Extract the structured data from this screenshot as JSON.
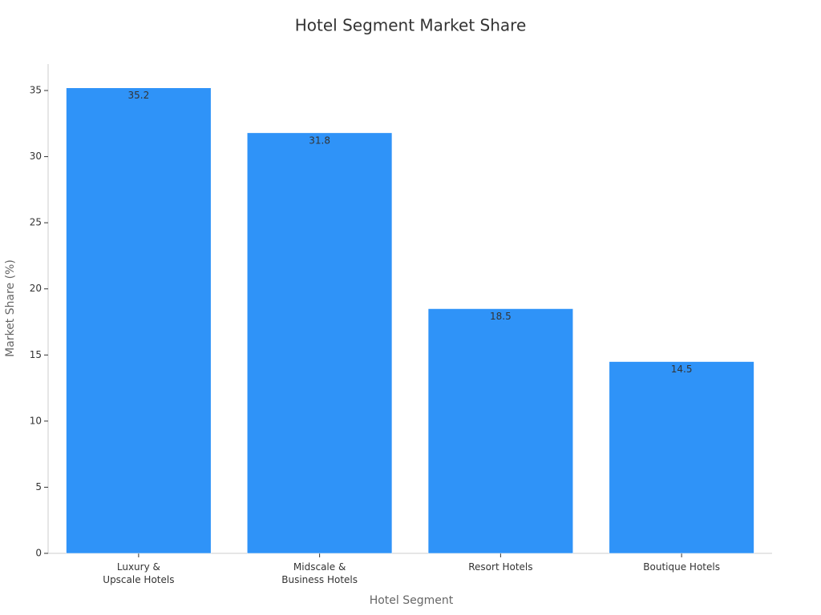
{
  "chart_data": {
    "type": "bar",
    "title": "Hotel Segment Market Share",
    "xlabel": "Hotel Segment",
    "ylabel": "Market Share (%)",
    "categories": [
      "Luxury &\nUpscale Hotels",
      "Midscale &\nBusiness Hotels",
      "Resort Hotels",
      "Boutique Hotels"
    ],
    "values": [
      35.2,
      31.8,
      18.5,
      14.5
    ],
    "color": "#2f93f8",
    "ylim": [
      0,
      37
    ],
    "yticks": [
      0,
      5,
      10,
      15,
      20,
      25,
      30,
      35
    ],
    "grid": false
  }
}
